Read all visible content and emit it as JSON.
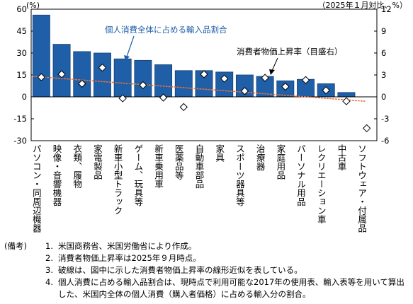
{
  "chart_data": {
    "type": "bar",
    "left_unit": "(%)",
    "right_unit": "（2025年１月対比、%）",
    "left_axis": {
      "ylim": [
        -30,
        60
      ],
      "ticks": [
        60,
        45,
        30,
        15,
        0,
        -15,
        -30
      ]
    },
    "right_axis": {
      "ylim": [
        -6,
        12
      ],
      "ticks": [
        12,
        9,
        6,
        3,
        0,
        -3,
        -6
      ]
    },
    "categories": [
      "パソコン・同周辺機器",
      "映像・音響機器",
      "衣類、履物",
      "家電製品",
      "新車小型トラック",
      "ゲーム、玩具等",
      "新車乗用車",
      "医薬品等",
      "自動車部品",
      "家具",
      "スポーツ器具等",
      "治療器",
      "家庭用品",
      "パーソナル用品",
      "レクリエーション車",
      "中古車",
      "ソフトウェア・付属品"
    ],
    "series": [
      {
        "name": "個人消費全体に占める輸入品割合",
        "kind": "bar",
        "axis": "left",
        "color": "#1f5fa8",
        "values": [
          56,
          36,
          31,
          30,
          26,
          25,
          22,
          18,
          18,
          17,
          15,
          14,
          11,
          12,
          9,
          3,
          0
        ]
      },
      {
        "name": "消費者物価上昇率（目盛右）",
        "kind": "diamond",
        "axis": "right",
        "values": [
          2.7,
          3.1,
          1.8,
          4.0,
          -0.2,
          1.6,
          -0.1,
          -1.4,
          3.1,
          2.5,
          0.8,
          2.6,
          1.4,
          2.3,
          0.9,
          -0.6,
          -4.3
        ]
      }
    ],
    "trend_line": {
      "color": "#e8703a",
      "style": "dotted",
      "start": 2.8,
      "end": -0.6
    }
  },
  "notes": {
    "head": "(備考)",
    "items": [
      {
        "num": "1.",
        "text": "米国商務省、米国労働省により作成。"
      },
      {
        "num": "2.",
        "text": "消費者物価上昇率は2025年９月時点。"
      },
      {
        "num": "3.",
        "text": "破線は、図中に示した消費者物価上昇率の線形近似を表している。"
      },
      {
        "num": "4.",
        "text": "個人消費に占める輸入品割合は、現時点で利用可能な2017年の使用表、輸入表等を用いて算出した、米国内全体の個人消費（購入者価格）に占める輸入分の割合。"
      }
    ]
  },
  "colors": {
    "bar": "#1f5fa8",
    "bar_label": "#1f5fa8",
    "trend": "#e8703a",
    "axis": "#000000"
  }
}
